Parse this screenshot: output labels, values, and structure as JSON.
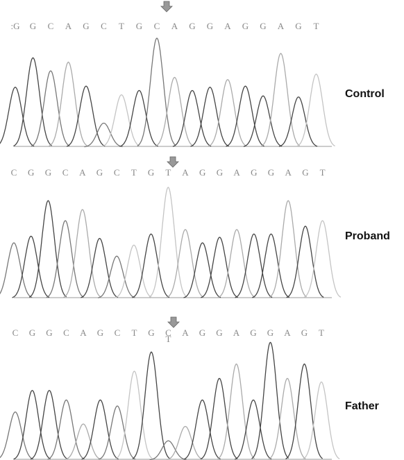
{
  "panels": [
    {
      "label": "Control",
      "sequence": [
        ":G",
        "G",
        "C",
        "A",
        "G",
        "C",
        "T",
        "G",
        "C",
        "A",
        "G",
        "G",
        "A",
        "G",
        "G",
        "A",
        "G",
        "T"
      ]
    },
    {
      "label": "Proband",
      "sequence": [
        "C",
        "G",
        "G",
        "C",
        "A",
        "G",
        "C",
        "T",
        "G",
        "T",
        "A",
        "G",
        "G",
        "A",
        "G",
        "G",
        "A",
        "G",
        "T"
      ]
    },
    {
      "label": "Father",
      "sequence": [
        "C",
        "G",
        "G",
        "C",
        "A",
        "G",
        "C",
        "T",
        "G",
        {
          "top": "C",
          "bottom": "T"
        },
        "A",
        "G",
        "G",
        "A",
        "G",
        "G",
        "A",
        "G",
        "T"
      ]
    }
  ]
}
